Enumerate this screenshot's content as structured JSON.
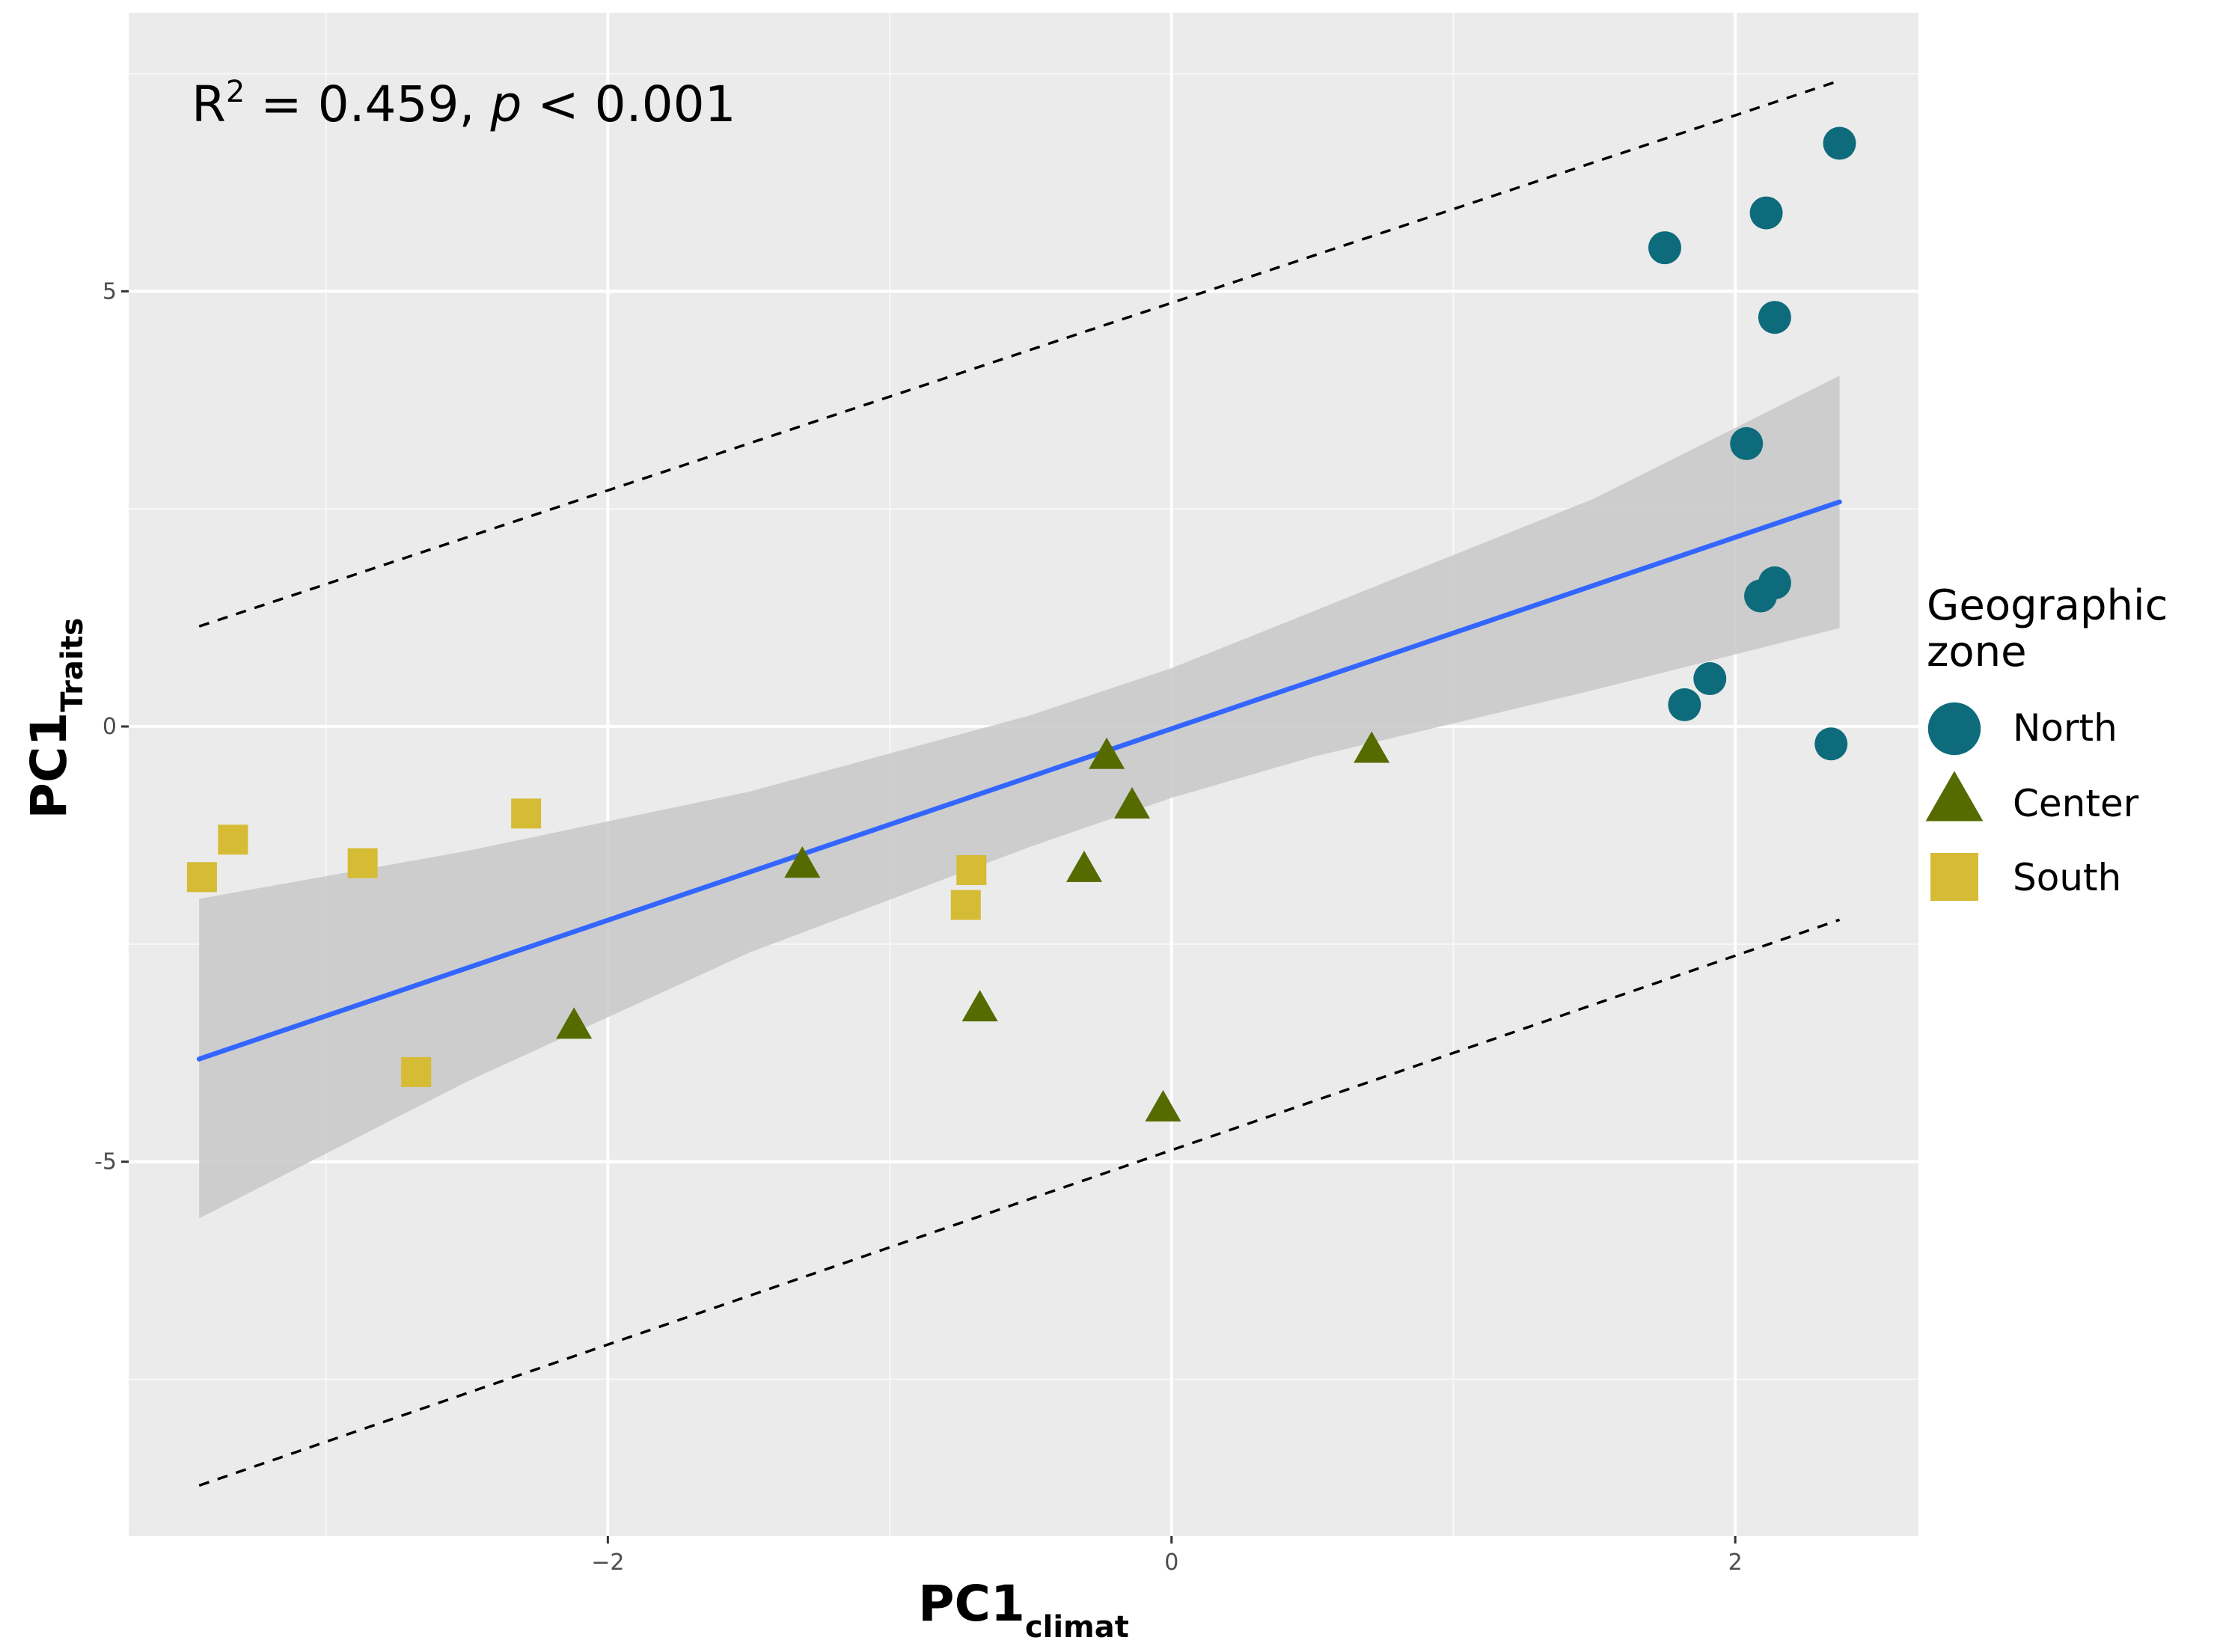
{
  "chart_data": {
    "type": "scatter",
    "annotation": {
      "r2_prefix": "R",
      "r2_superscript": "2",
      "r2_text": " = 0.459, ",
      "p_symbol": "p",
      "p_text": " < 0.001"
    },
    "xlabel": {
      "main": "PC1",
      "sub": "climat"
    },
    "ylabel": {
      "main": "PC1",
      "sub": "Traits"
    },
    "xlim": [
      -3.7,
      2.65
    ],
    "ylim": [
      -9.3,
      8.2
    ],
    "x_ticks": [
      -2,
      0,
      2
    ],
    "x_tick_labels": [
      "−2",
      "0",
      "2"
    ],
    "x_minor_ticks": [
      -3,
      -1,
      1
    ],
    "y_ticks": [
      -5,
      0,
      5
    ],
    "y_tick_labels": [
      "-5",
      "0",
      "5"
    ],
    "y_minor_ticks": [
      -7.5,
      -2.5,
      2.5,
      7.5
    ],
    "grid": true,
    "legend": {
      "title_line1": "Geographic",
      "title_line2": "zone",
      "position": "right",
      "entries": [
        {
          "label": "North",
          "shape": "circle",
          "color": "#0e6b7c"
        },
        {
          "label": "Center",
          "shape": "triangle",
          "color": "#556b00"
        },
        {
          "label": "South",
          "shape": "square",
          "color": "#d6bb35"
        }
      ]
    },
    "series": [
      {
        "name": "North",
        "shape": "circle",
        "color": "#0e6b7c",
        "points": [
          {
            "x": 2.37,
            "y": 6.7
          },
          {
            "x": 2.11,
            "y": 5.9
          },
          {
            "x": 1.75,
            "y": 5.5
          },
          {
            "x": 2.14,
            "y": 4.7
          },
          {
            "x": 2.04,
            "y": 3.25
          },
          {
            "x": 2.14,
            "y": 1.65
          },
          {
            "x": 2.09,
            "y": 1.5
          },
          {
            "x": 1.91,
            "y": 0.55
          },
          {
            "x": 1.82,
            "y": 0.25
          },
          {
            "x": 2.34,
            "y": -0.2
          }
        ]
      },
      {
        "name": "Center",
        "shape": "triangle",
        "color": "#556b00",
        "points": [
          {
            "x": -0.23,
            "y": -0.35
          },
          {
            "x": 0.71,
            "y": -0.28
          },
          {
            "x": -0.14,
            "y": -0.92
          },
          {
            "x": -1.31,
            "y": -1.6
          },
          {
            "x": -0.31,
            "y": -1.65
          },
          {
            "x": -0.68,
            "y": -3.25
          },
          {
            "x": -2.12,
            "y": -3.45
          },
          {
            "x": -0.03,
            "y": -4.4
          }
        ]
      },
      {
        "name": "South",
        "shape": "square",
        "color": "#d6bb35",
        "points": [
          {
            "x": -2.29,
            "y": -1.0
          },
          {
            "x": -3.33,
            "y": -1.3
          },
          {
            "x": -2.87,
            "y": -1.57
          },
          {
            "x": -3.44,
            "y": -1.73
          },
          {
            "x": -0.71,
            "y": -1.65
          },
          {
            "x": -0.73,
            "y": -2.05
          },
          {
            "x": -2.68,
            "y": -3.97
          }
        ]
      }
    ],
    "regression": {
      "color": "#3366ff",
      "band_color": "#c8c8c8",
      "points": [
        {
          "x": -3.45,
          "y": -3.82
        },
        {
          "x": 2.37,
          "y": 2.58
        }
      ],
      "confidence_band": [
        {
          "x": -3.45,
          "lower": -5.65,
          "upper": -1.98
        },
        {
          "x": -2.5,
          "lower": -4.08,
          "upper": -1.43
        },
        {
          "x": -1.5,
          "lower": -2.6,
          "upper": -0.75
        },
        {
          "x": -0.5,
          "lower": -1.38,
          "upper": 0.13
        },
        {
          "x": 0.0,
          "lower": -0.82,
          "upper": 0.67
        },
        {
          "x": 0.5,
          "lower": -0.35,
          "upper": 1.32
        },
        {
          "x": 1.5,
          "lower": 0.42,
          "upper": 2.62
        },
        {
          "x": 2.37,
          "lower": 1.13,
          "upper": 4.03
        }
      ]
    },
    "prediction_interval": {
      "upper": [
        {
          "x": -3.45,
          "y": 1.15
        },
        {
          "x": 2.37,
          "y": 7.42
        }
      ],
      "lower": [
        {
          "x": -3.45,
          "y": -8.72
        },
        {
          "x": 2.37,
          "y": -2.22
        }
      ]
    }
  }
}
